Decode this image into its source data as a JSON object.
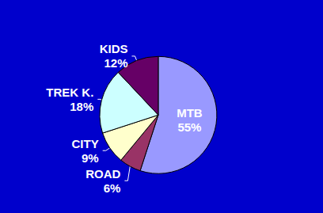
{
  "chart_data": {
    "type": "pie",
    "categories": [
      "MTB",
      "ROAD",
      "CITY",
      "TREK K.",
      "KIDS"
    ],
    "values": [
      55,
      6,
      9,
      18,
      12
    ],
    "value_labels": [
      "55%",
      "6%",
      "9%",
      "18%",
      "12%"
    ],
    "colors": [
      "#9999ff",
      "#993366",
      "#ffffcc",
      "#ccffff",
      "#660066"
    ],
    "data_labels": true
  }
}
